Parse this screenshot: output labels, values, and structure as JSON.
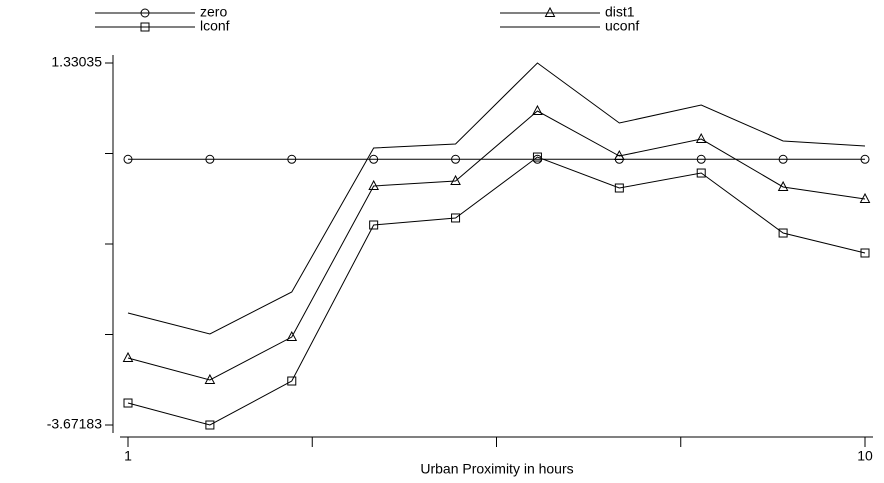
{
  "chart_data": {
    "type": "line",
    "x": [
      1,
      2,
      3,
      4,
      5,
      6,
      7,
      8,
      9,
      10
    ],
    "xlabel": "Urban Proximity in hours",
    "xlim": [
      1,
      10
    ],
    "xticks": [
      1,
      10
    ],
    "xminor": [
      3.25,
      5.5,
      7.75
    ],
    "ylim": [
      -3.67183,
      1.33035
    ],
    "yticks": [
      -3.67183,
      1.33035
    ],
    "yminor": [
      -2.42129,
      -1.17075,
      0.0798
    ],
    "legend": "top",
    "series": [
      {
        "name": "zero",
        "color": "#000000",
        "marker": "circle",
        "values": [
          0,
          0,
          0,
          0,
          0,
          0,
          0,
          0,
          0,
          0
        ]
      },
      {
        "name": "dist1",
        "color": "#000000",
        "marker": "triangle",
        "values": [
          -2.746,
          -3.05,
          -2.456,
          -0.369,
          -0.3,
          0.667,
          0.045,
          0.28,
          -0.383,
          -0.549
        ]
      },
      {
        "name": "lconf",
        "color": "#000000",
        "marker": "square",
        "values": [
          -3.368,
          -3.67183,
          -3.064,
          -0.908,
          -0.811,
          0.031,
          -0.397,
          -0.19,
          -1.019,
          -1.295
        ]
      },
      {
        "name": "uconf",
        "color": "#000000",
        "marker": "none",
        "values": [
          -2.124,
          -2.414,
          -1.834,
          0.156,
          0.211,
          1.33035,
          0.501,
          0.75,
          0.253,
          0.183
        ]
      }
    ]
  }
}
